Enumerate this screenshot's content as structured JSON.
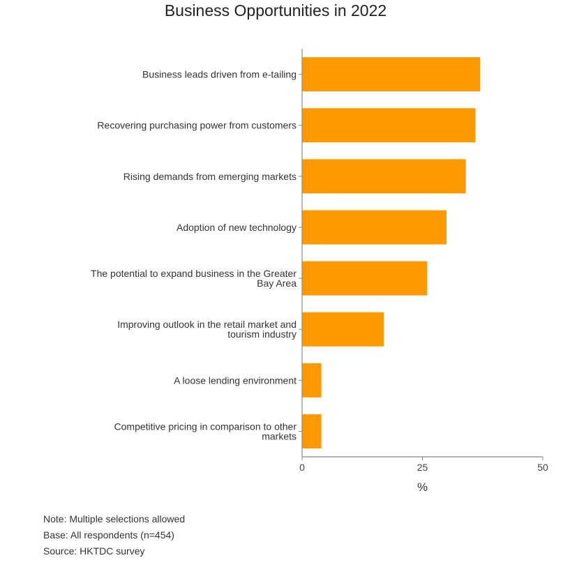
{
  "chart_data": {
    "type": "bar",
    "orientation": "horizontal",
    "title": "Business Opportunities in 2022",
    "xlabel": "%",
    "ylabel": "",
    "xlim": [
      0,
      50
    ],
    "xticks": [
      "0",
      "25",
      "50"
    ],
    "grid": false,
    "categories": [
      [
        "Business leads driven from e-tailing"
      ],
      [
        "Recovering purchasing power from customers"
      ],
      [
        "Rising demands from emerging markets"
      ],
      [
        "Adoption of new technology"
      ],
      [
        "The potential to expand business in the Greater",
        "Bay Area"
      ],
      [
        "Improving outlook in the retail market and",
        "tourism industry"
      ],
      [
        "A loose lending environment"
      ],
      [
        "Competitive pricing in comparison to other",
        "markets"
      ]
    ],
    "values": [
      37,
      36,
      34,
      30,
      26,
      17,
      4,
      4
    ],
    "bar_color": "#ff9900",
    "axis_color": "#888888"
  },
  "notes": {
    "note": "Note: Multiple selections allowed",
    "base": "Base: All respondents (n=454)",
    "source": "Source: HKTDC survey"
  }
}
